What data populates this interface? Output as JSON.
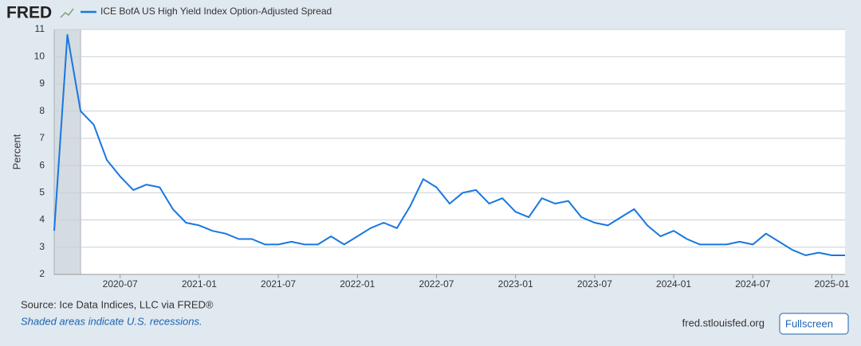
{
  "logo": "FRED",
  "chart_data": {
    "type": "line",
    "title": "ICE BofA US High Yield Index Option-Adjusted Spread",
    "ylabel": "Percent",
    "x": [
      "2020-02",
      "2020-03",
      "2020-04",
      "2020-05",
      "2020-06",
      "2020-07",
      "2020-08",
      "2020-09",
      "2020-10",
      "2020-11",
      "2020-12",
      "2021-01",
      "2021-02",
      "2021-03",
      "2021-04",
      "2021-05",
      "2021-06",
      "2021-07",
      "2021-08",
      "2021-09",
      "2021-10",
      "2021-11",
      "2021-12",
      "2022-01",
      "2022-02",
      "2022-03",
      "2022-04",
      "2022-05",
      "2022-06",
      "2022-07",
      "2022-08",
      "2022-09",
      "2022-10",
      "2022-11",
      "2022-12",
      "2023-01",
      "2023-02",
      "2023-03",
      "2023-04",
      "2023-05",
      "2023-06",
      "2023-07",
      "2023-08",
      "2023-09",
      "2023-10",
      "2023-11",
      "2023-12",
      "2024-01",
      "2024-02",
      "2024-03",
      "2024-04",
      "2024-05",
      "2024-06",
      "2024-07",
      "2024-08",
      "2024-09",
      "2024-10",
      "2024-11",
      "2024-12",
      "2025-01",
      "2025-02"
    ],
    "series": [
      {
        "name": "ICE BofA US High Yield Index Option-Adjusted Spread",
        "color": "#1877e0",
        "values": [
          3.6,
          10.8,
          8.0,
          7.5,
          6.2,
          5.6,
          5.1,
          5.3,
          5.2,
          4.4,
          3.9,
          3.8,
          3.6,
          3.5,
          3.3,
          3.3,
          3.1,
          3.1,
          3.2,
          3.1,
          3.1,
          3.4,
          3.1,
          3.4,
          3.7,
          3.9,
          3.7,
          4.5,
          5.5,
          5.2,
          4.6,
          5.0,
          5.1,
          4.6,
          4.8,
          4.3,
          4.1,
          4.8,
          4.6,
          4.7,
          4.1,
          3.9,
          3.8,
          4.1,
          4.4,
          3.8,
          3.4,
          3.6,
          3.3,
          3.1,
          3.1,
          3.1,
          3.2,
          3.1,
          3.5,
          3.2,
          2.9,
          2.7,
          2.8,
          2.7,
          2.7
        ]
      }
    ],
    "recessions": [
      {
        "start": "2020-02",
        "end": "2020-04"
      }
    ],
    "xlim": [
      "2020-02",
      "2025-02"
    ],
    "xticks": [
      "2020-07",
      "2021-01",
      "2021-07",
      "2022-01",
      "2022-07",
      "2023-01",
      "2023-07",
      "2024-01",
      "2024-07",
      "2025-01"
    ],
    "ylim": [
      2,
      11
    ],
    "yticks": [
      2,
      3,
      4,
      5,
      6,
      7,
      8,
      9,
      10,
      11
    ],
    "grid": true
  },
  "footer": {
    "source": "Source: Ice Data Indices, LLC via FRED®",
    "note": "Shaded areas indicate U.S. recessions.",
    "site": "fred.stlouisfed.org",
    "button": "Fullscreen"
  }
}
